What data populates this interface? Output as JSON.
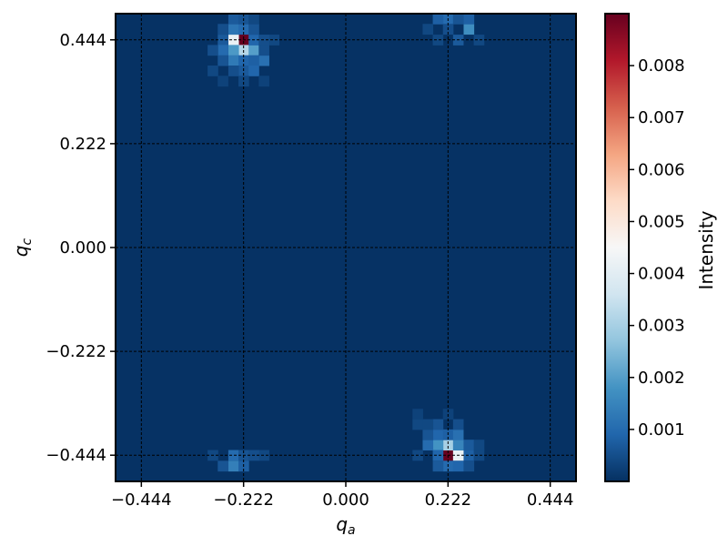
{
  "chart_data": {
    "type": "heatmap",
    "xlabel": "q",
    "xlabel_sub": "a",
    "ylabel": "q",
    "ylabel_sub": "c",
    "colorbar_label": "Intensity",
    "x_range": [
      -0.5,
      0.5
    ],
    "y_range": [
      -0.5,
      0.5
    ],
    "x_ticks": [
      -0.444,
      -0.222,
      0.0,
      0.222,
      0.444
    ],
    "x_tick_labels": [
      "−0.444",
      "−0.222",
      "0.000",
      "0.222",
      "0.444"
    ],
    "y_ticks": [
      -0.444,
      -0.222,
      0.0,
      0.222,
      0.444
    ],
    "y_tick_labels": [
      "−0.444",
      "−0.222",
      "0.000",
      "0.222",
      "0.444"
    ],
    "colorbar_range": [
      0.0,
      0.009
    ],
    "colorbar_ticks": [
      0.001,
      0.002,
      0.003,
      0.004,
      0.005,
      0.006,
      0.007,
      0.008
    ],
    "colorbar_tick_labels": [
      "0.001",
      "0.002",
      "0.003",
      "0.004",
      "0.005",
      "0.006",
      "0.007",
      "0.008"
    ],
    "colormap": "RdBu_r",
    "colormap_stops": [
      "#053061",
      "#2166ac",
      "#4393c3",
      "#92c5de",
      "#d1e5f0",
      "#f7f7f7",
      "#fddbc7",
      "#f4a582",
      "#d6604d",
      "#b2182b",
      "#67001f"
    ],
    "grid": true,
    "grid_style": "dashed black",
    "cell_size": 0.0222,
    "background_value": 3e-05,
    "cells": [
      {
        "x": -0.222,
        "y": 0.444,
        "v": 0.009
      },
      {
        "x": -0.244,
        "y": 0.444,
        "v": 0.0042
      },
      {
        "x": -0.222,
        "y": 0.422,
        "v": 0.0032
      },
      {
        "x": -0.244,
        "y": 0.422,
        "v": 0.0019
      },
      {
        "x": -0.2,
        "y": 0.422,
        "v": 0.002
      },
      {
        "x": -0.244,
        "y": 0.467,
        "v": 0.0012
      },
      {
        "x": -0.222,
        "y": 0.467,
        "v": 0.001
      },
      {
        "x": -0.2,
        "y": 0.444,
        "v": 0.0009
      },
      {
        "x": -0.267,
        "y": 0.444,
        "v": 0.0007
      },
      {
        "x": -0.244,
        "y": 0.4,
        "v": 0.0013
      },
      {
        "x": -0.222,
        "y": 0.4,
        "v": 0.0009
      },
      {
        "x": -0.178,
        "y": 0.4,
        "v": 0.0011
      },
      {
        "x": -0.2,
        "y": 0.4,
        "v": 0.0008
      },
      {
        "x": -0.267,
        "y": 0.422,
        "v": 0.001
      },
      {
        "x": -0.267,
        "y": 0.4,
        "v": 0.0006
      },
      {
        "x": -0.222,
        "y": 0.378,
        "v": 0.0007
      },
      {
        "x": -0.2,
        "y": 0.378,
        "v": 0.0009
      },
      {
        "x": -0.244,
        "y": 0.378,
        "v": 0.0005
      },
      {
        "x": -0.289,
        "y": 0.422,
        "v": 0.0005
      },
      {
        "x": -0.178,
        "y": 0.422,
        "v": 0.0005
      },
      {
        "x": -0.156,
        "y": 0.444,
        "v": 0.0004
      },
      {
        "x": -0.178,
        "y": 0.444,
        "v": 0.0005
      },
      {
        "x": -0.2,
        "y": 0.467,
        "v": 0.0006
      },
      {
        "x": -0.267,
        "y": 0.467,
        "v": 0.0005
      },
      {
        "x": -0.289,
        "y": 0.378,
        "v": 0.0004
      },
      {
        "x": -0.267,
        "y": 0.356,
        "v": 0.0003
      },
      {
        "x": -0.222,
        "y": 0.356,
        "v": 0.0004
      },
      {
        "x": -0.178,
        "y": 0.356,
        "v": 0.0003
      },
      {
        "x": 0.222,
        "y": -0.444,
        "v": 0.009
      },
      {
        "x": 0.244,
        "y": -0.444,
        "v": 0.0042
      },
      {
        "x": 0.222,
        "y": -0.422,
        "v": 0.003
      },
      {
        "x": 0.2,
        "y": -0.422,
        "v": 0.0018
      },
      {
        "x": 0.244,
        "y": -0.422,
        "v": 0.0015
      },
      {
        "x": 0.2,
        "y": -0.444,
        "v": 0.0009
      },
      {
        "x": 0.267,
        "y": -0.444,
        "v": 0.0008
      },
      {
        "x": 0.222,
        "y": -0.467,
        "v": 0.001
      },
      {
        "x": 0.244,
        "y": -0.467,
        "v": 0.0009
      },
      {
        "x": 0.2,
        "y": -0.467,
        "v": 0.0007
      },
      {
        "x": 0.178,
        "y": -0.422,
        "v": 0.001
      },
      {
        "x": 0.2,
        "y": -0.4,
        "v": 0.0009
      },
      {
        "x": 0.222,
        "y": -0.4,
        "v": 0.0008
      },
      {
        "x": 0.244,
        "y": -0.4,
        "v": 0.0011
      },
      {
        "x": 0.267,
        "y": -0.422,
        "v": 0.0007
      },
      {
        "x": 0.178,
        "y": -0.4,
        "v": 0.0006
      },
      {
        "x": 0.2,
        "y": -0.378,
        "v": 0.0006
      },
      {
        "x": 0.244,
        "y": -0.378,
        "v": 0.0005
      },
      {
        "x": 0.178,
        "y": -0.378,
        "v": 0.0004
      },
      {
        "x": 0.156,
        "y": -0.378,
        "v": 0.0004
      },
      {
        "x": 0.156,
        "y": -0.444,
        "v": 0.0004
      },
      {
        "x": 0.289,
        "y": -0.422,
        "v": 0.0004
      },
      {
        "x": 0.289,
        "y": -0.444,
        "v": 0.0004
      },
      {
        "x": 0.156,
        "y": -0.356,
        "v": 0.0003
      },
      {
        "x": 0.222,
        "y": -0.356,
        "v": 0.0003
      },
      {
        "x": 0.267,
        "y": -0.467,
        "v": 0.0005
      },
      {
        "x": -0.244,
        "y": -0.444,
        "v": 0.001
      },
      {
        "x": -0.222,
        "y": -0.444,
        "v": 0.0006
      },
      {
        "x": -0.267,
        "y": -0.467,
        "v": 0.0006
      },
      {
        "x": -0.244,
        "y": -0.467,
        "v": 0.0014
      },
      {
        "x": -0.222,
        "y": -0.467,
        "v": 0.0008
      },
      {
        "x": -0.289,
        "y": -0.444,
        "v": 0.0004
      },
      {
        "x": -0.178,
        "y": -0.444,
        "v": 0.0004
      },
      {
        "x": -0.2,
        "y": -0.444,
        "v": 0.0005
      },
      {
        "x": 0.222,
        "y": 0.489,
        "v": 0.001
      },
      {
        "x": 0.2,
        "y": 0.489,
        "v": 0.0008
      },
      {
        "x": 0.244,
        "y": 0.489,
        "v": 0.0006
      },
      {
        "x": 0.267,
        "y": 0.467,
        "v": 0.0017
      },
      {
        "x": 0.244,
        "y": 0.444,
        "v": 0.0007
      },
      {
        "x": 0.267,
        "y": 0.489,
        "v": 0.0008
      },
      {
        "x": 0.222,
        "y": 0.467,
        "v": 0.0005
      },
      {
        "x": 0.178,
        "y": 0.467,
        "v": 0.0004
      },
      {
        "x": 0.289,
        "y": 0.444,
        "v": 0.0004
      },
      {
        "x": 0.2,
        "y": 0.444,
        "v": 0.0004
      },
      {
        "x": -0.244,
        "y": 0.489,
        "v": 0.0007
      },
      {
        "x": -0.222,
        "y": 0.489,
        "v": 0.0006
      },
      {
        "x": -0.2,
        "y": 0.489,
        "v": 0.0004
      }
    ]
  }
}
